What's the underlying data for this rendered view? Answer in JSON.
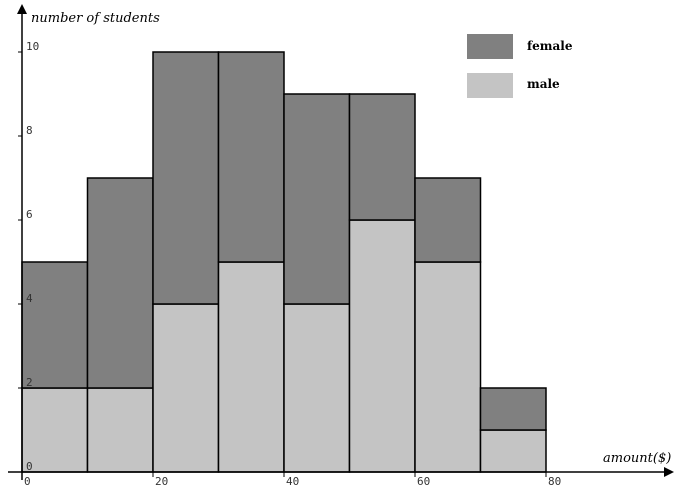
{
  "chart_data": {
    "type": "bar",
    "stacked": true,
    "xlabel": "amount($)",
    "ylabel": "number of students",
    "xlim": [
      0,
      100
    ],
    "ylim": [
      0,
      10.5
    ],
    "x_ticks": [
      "0",
      "20",
      "40",
      "60",
      "80"
    ],
    "y_ticks": [
      "0",
      "2",
      "4",
      "6",
      "8",
      "10"
    ],
    "bins": [
      [
        0,
        10
      ],
      [
        10,
        20
      ],
      [
        20,
        30
      ],
      [
        30,
        40
      ],
      [
        40,
        50
      ],
      [
        50,
        60
      ],
      [
        60,
        70
      ],
      [
        70,
        80
      ]
    ],
    "series": [
      {
        "name": "male",
        "color": "#c4c4c4",
        "values": [
          2,
          2,
          4,
          5,
          4,
          6,
          5,
          1
        ]
      },
      {
        "name": "female",
        "color": "#808080",
        "values": [
          3,
          5,
          6,
          5,
          5,
          3,
          2,
          1
        ]
      }
    ],
    "legend_position": "top-right",
    "grid": false
  }
}
